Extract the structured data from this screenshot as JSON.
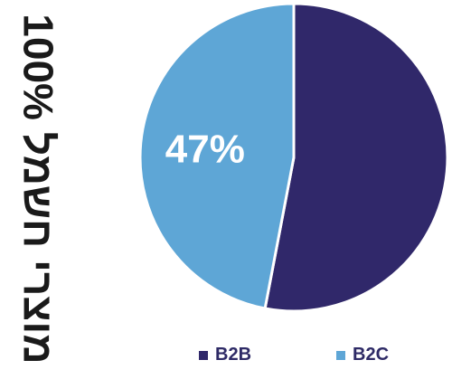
{
  "side_label": "100% מוצרי חשמל",
  "chart_data": {
    "type": "pie",
    "title": "",
    "slices": [
      {
        "name": "B2B",
        "value": 53,
        "label": "",
        "color": "#30286a"
      },
      {
        "name": "B2C",
        "value": 47,
        "label": "47%",
        "color": "#5ea6d6"
      }
    ],
    "legend": {
      "placement": "bottom",
      "entries": [
        "B2B",
        "B2C"
      ]
    }
  }
}
